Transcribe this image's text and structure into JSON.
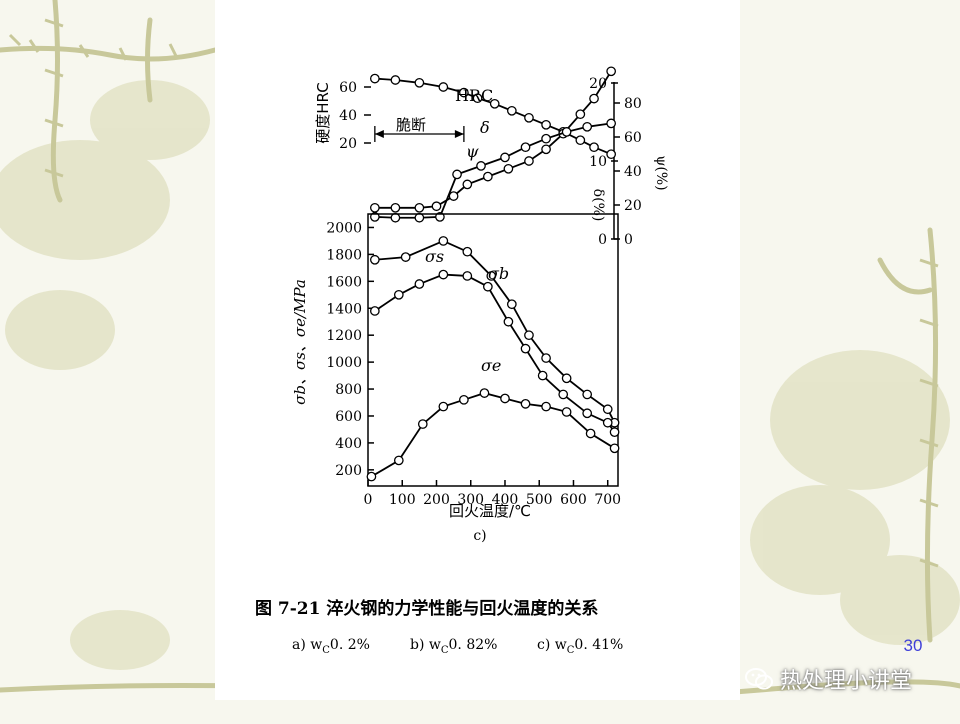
{
  "slide": {
    "page_number": "30",
    "watermark": "热处理小讲堂",
    "colors": {
      "background": "#f7f7ee",
      "vine": "#c8c89a",
      "page_number": "#3f3fd8"
    }
  },
  "figure": {
    "caption": "图 7-21   淬火钢的力学性能与回火温度的关系",
    "subcaption_a": "a) w",
    "subcaption_a_sub": "C",
    "subcaption_a_val": "0. 2%",
    "subcaption_b": "b) w",
    "subcaption_b_sub": "C",
    "subcaption_b_val": "0. 82%",
    "subcaption_c": "c) w",
    "subcaption_c_sub": "C",
    "subcaption_c_val": "0. 41%",
    "panel_label": "c)"
  },
  "chart_data": {
    "type": "line",
    "xlabel": "回火温度/℃",
    "x_ticks": [
      0,
      100,
      200,
      300,
      400,
      500,
      600,
      700
    ],
    "xlim": [
      0,
      730
    ],
    "upper": {
      "left_axis_label": "硬度HRC",
      "left_ticks": [
        20,
        40,
        60
      ],
      "delta_axis_label": "δ(%)",
      "delta_ticks": [
        0,
        10,
        20
      ],
      "psi_axis_label": "ψ(%)",
      "psi_ticks": [
        0,
        20,
        40,
        60,
        80
      ],
      "brittle_label": "脆断",
      "brittle_range": [
        20,
        280
      ],
      "series": [
        {
          "name": "HRC",
          "axis": "HRC",
          "points": [
            [
              20,
              66
            ],
            [
              80,
              65
            ],
            [
              150,
              63
            ],
            [
              220,
              60
            ],
            [
              280,
              56
            ],
            [
              320,
              52
            ],
            [
              370,
              48
            ],
            [
              420,
              43
            ],
            [
              470,
              38
            ],
            [
              520,
              33
            ],
            [
              570,
              28
            ],
            [
              620,
              22
            ],
            [
              660,
              17
            ],
            [
              710,
              12
            ]
          ]
        },
        {
          "name": "δ",
          "axis": "delta",
          "points": [
            [
              20,
              4
            ],
            [
              80,
              4
            ],
            [
              150,
              4
            ],
            [
              200,
              4.2
            ],
            [
              250,
              5.5
            ],
            [
              290,
              7
            ],
            [
              350,
              8
            ],
            [
              410,
              9
            ],
            [
              470,
              10
            ],
            [
              520,
              11.5
            ],
            [
              570,
              13.5
            ],
            [
              620,
              16
            ],
            [
              660,
              18
            ],
            [
              710,
              21.5
            ]
          ]
        },
        {
          "name": "ψ",
          "axis": "psi",
          "points": [
            [
              20,
              13
            ],
            [
              80,
              12.5
            ],
            [
              150,
              12.5
            ],
            [
              210,
              13
            ],
            [
              260,
              38
            ],
            [
              330,
              43
            ],
            [
              400,
              48
            ],
            [
              460,
              54
            ],
            [
              520,
              59
            ],
            [
              580,
              63
            ],
            [
              640,
              66
            ],
            [
              710,
              68
            ]
          ]
        }
      ]
    },
    "lower": {
      "ylabel": "σb、σs、σe/MPa",
      "y_ticks": [
        200,
        400,
        600,
        800,
        1000,
        1200,
        1400,
        1600,
        1800,
        2000
      ],
      "ylim": [
        80,
        2100
      ],
      "series": [
        {
          "name": "σs",
          "points": [
            [
              20,
              1760
            ],
            [
              110,
              1780
            ],
            [
              220,
              1900
            ],
            [
              290,
              1820
            ],
            [
              360,
              1640
            ],
            [
              420,
              1430
            ],
            [
              470,
              1200
            ],
            [
              520,
              1030
            ],
            [
              580,
              880
            ],
            [
              640,
              760
            ],
            [
              700,
              650
            ],
            [
              720,
              550
            ]
          ]
        },
        {
          "name": "σb",
          "points": [
            [
              20,
              1380
            ],
            [
              90,
              1500
            ],
            [
              150,
              1580
            ],
            [
              220,
              1650
            ],
            [
              290,
              1640
            ],
            [
              350,
              1560
            ],
            [
              410,
              1300
            ],
            [
              460,
              1100
            ],
            [
              510,
              900
            ],
            [
              570,
              760
            ],
            [
              640,
              620
            ],
            [
              700,
              550
            ],
            [
              720,
              480
            ]
          ]
        },
        {
          "name": "σe",
          "points": [
            [
              10,
              150
            ],
            [
              90,
              270
            ],
            [
              160,
              540
            ],
            [
              220,
              670
            ],
            [
              280,
              720
            ],
            [
              340,
              770
            ],
            [
              400,
              730
            ],
            [
              460,
              690
            ],
            [
              520,
              670
            ],
            [
              580,
              630
            ],
            [
              650,
              470
            ],
            [
              720,
              360
            ]
          ]
        }
      ]
    }
  }
}
